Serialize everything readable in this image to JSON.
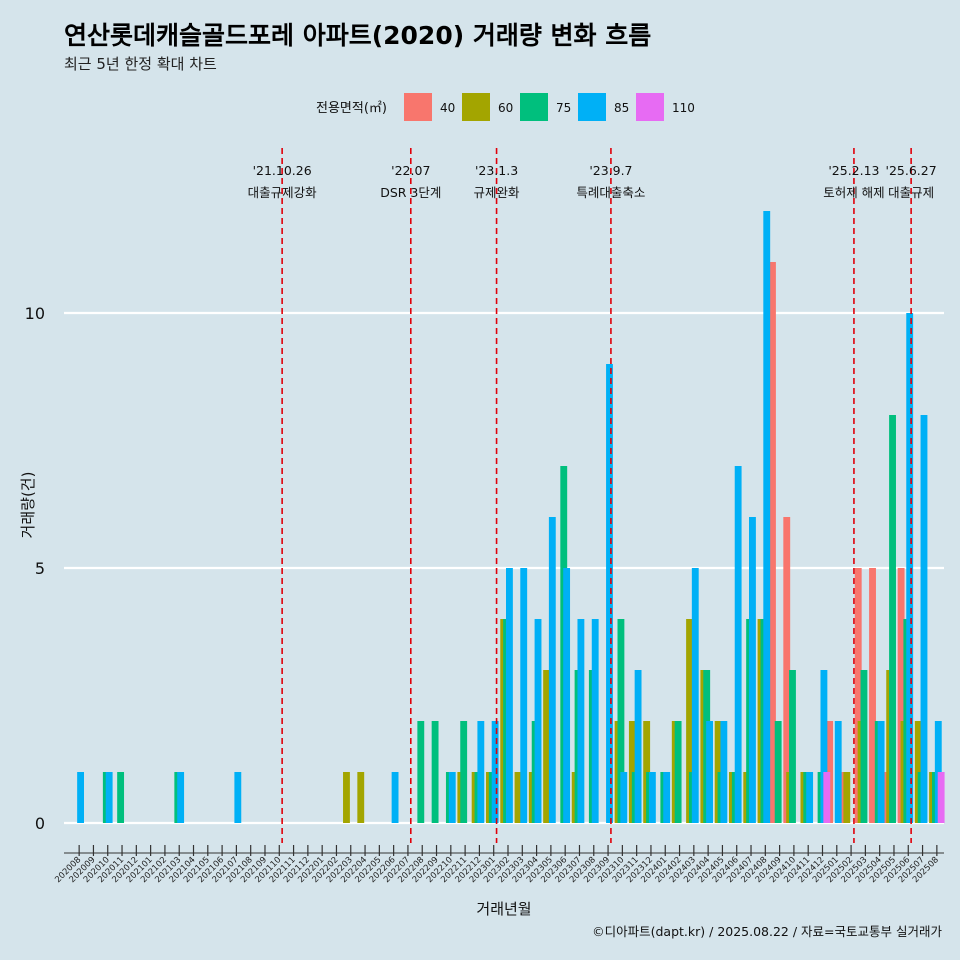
{
  "chart_data": {
    "type": "bar",
    "title": "연산롯데캐슬골드포레 아파트(2020) 거래량 변화 흐름",
    "subtitle": "최근 5년 한정 확대 차트",
    "xlabel": "거래년월",
    "ylabel": "거래량(건)",
    "caption": "©디아파트(dapt.kr) / 2025.08.22 / 자료=국토교통부 실거래가",
    "legend_title": "전용면적(㎡)",
    "legend_position": "top",
    "ylim": [
      0,
      12.5
    ],
    "yticks": [
      0,
      5,
      10
    ],
    "grid": true,
    "categories": [
      "202008",
      "202009",
      "202010",
      "202011",
      "202012",
      "202101",
      "202102",
      "202103",
      "202104",
      "202105",
      "202106",
      "202107",
      "202108",
      "202109",
      "202110",
      "202111",
      "202112",
      "202201",
      "202202",
      "202203",
      "202204",
      "202205",
      "202206",
      "202207",
      "202208",
      "202209",
      "202210",
      "202211",
      "202212",
      "202301",
      "202302",
      "202303",
      "202304",
      "202305",
      "202306",
      "202307",
      "202308",
      "202309",
      "202310",
      "202311",
      "202312",
      "202401",
      "202402",
      "202403",
      "202404",
      "202405",
      "202406",
      "202407",
      "202408",
      "202409",
      "202410",
      "202411",
      "202412",
      "202501",
      "202502",
      "202503",
      "202504",
      "202505",
      "202506",
      "202507",
      "202508"
    ],
    "series": [
      {
        "name": "40",
        "color": "#f8766d",
        "values": [
          0,
          0,
          0,
          0,
          0,
          0,
          0,
          0,
          0,
          0,
          0,
          0,
          0,
          0,
          0,
          0,
          0,
          0,
          0,
          0,
          0,
          0,
          0,
          0,
          0,
          0,
          0,
          0,
          0,
          0,
          0,
          0,
          0,
          0,
          0,
          0,
          0,
          0,
          0,
          0,
          0,
          0,
          0,
          0,
          0,
          0,
          0,
          0,
          0,
          11,
          6,
          0,
          0,
          2,
          1,
          5,
          5,
          1,
          5,
          0,
          0
        ]
      },
      {
        "name": "60",
        "color": "#a3a500",
        "values": [
          0,
          0,
          0,
          0,
          0,
          0,
          0,
          0,
          0,
          0,
          0,
          0,
          0,
          0,
          0,
          0,
          0,
          0,
          0,
          1,
          1,
          0,
          0,
          0,
          0,
          0,
          0,
          1,
          1,
          1,
          4,
          1,
          1,
          3,
          0,
          1,
          0,
          0,
          2,
          2,
          2,
          0,
          2,
          4,
          3,
          2,
          1,
          1,
          4,
          0,
          1,
          1,
          0,
          0,
          1,
          2,
          0,
          3,
          2,
          2,
          1
        ]
      },
      {
        "name": "75",
        "color": "#00bf7d",
        "values": [
          0,
          0,
          1,
          1,
          0,
          0,
          0,
          1,
          0,
          0,
          0,
          0,
          0,
          0,
          0,
          0,
          0,
          0,
          0,
          0,
          0,
          0,
          0,
          0,
          2,
          2,
          1,
          2,
          1,
          1,
          4,
          0,
          2,
          0,
          7,
          3,
          3,
          0,
          4,
          1,
          1,
          1,
          2,
          1,
          3,
          1,
          1,
          4,
          4,
          2,
          3,
          1,
          1,
          0,
          0,
          3,
          2,
          8,
          4,
          1,
          1
        ]
      },
      {
        "name": "85",
        "color": "#00b0f6",
        "values": [
          1,
          0,
          1,
          0,
          0,
          0,
          0,
          1,
          0,
          0,
          0,
          1,
          0,
          0,
          0,
          0,
          0,
          0,
          0,
          0,
          0,
          0,
          1,
          0,
          0,
          0,
          1,
          0,
          2,
          2,
          5,
          5,
          4,
          6,
          5,
          4,
          4,
          9,
          1,
          3,
          1,
          1,
          0,
          5,
          2,
          2,
          7,
          6,
          12,
          0,
          0,
          1,
          3,
          2,
          0,
          0,
          2,
          0,
          10,
          8,
          2
        ]
      },
      {
        "name": "110",
        "color": "#e76bf3",
        "values": [
          0,
          0,
          0,
          0,
          0,
          0,
          0,
          0,
          0,
          0,
          0,
          0,
          0,
          0,
          0,
          0,
          0,
          0,
          0,
          0,
          0,
          0,
          0,
          0,
          0,
          0,
          0,
          0,
          0,
          0,
          0,
          0,
          0,
          0,
          0,
          0,
          0,
          0,
          0,
          0,
          0,
          0,
          0,
          0,
          0,
          0,
          0,
          0,
          0,
          0,
          0,
          0,
          1,
          0,
          0,
          0,
          0,
          0,
          0,
          0,
          1
        ]
      }
    ],
    "annotations": [
      {
        "x": "202110",
        "date": "'21.10.26",
        "text": "대출규제강화"
      },
      {
        "x": "202207",
        "date": "'22.07",
        "text": "DSR 3단계"
      },
      {
        "x": "202301",
        "date": "'23.1.3",
        "text": "규제완화"
      },
      {
        "x": "202309",
        "date": "'23.9.7",
        "text": "특례대출축소"
      },
      {
        "x": "202502",
        "date": "'25.2.13",
        "text": "토허제 해제"
      },
      {
        "x": "202506",
        "date": "'25.6.27",
        "text": "대출규제"
      }
    ]
  }
}
